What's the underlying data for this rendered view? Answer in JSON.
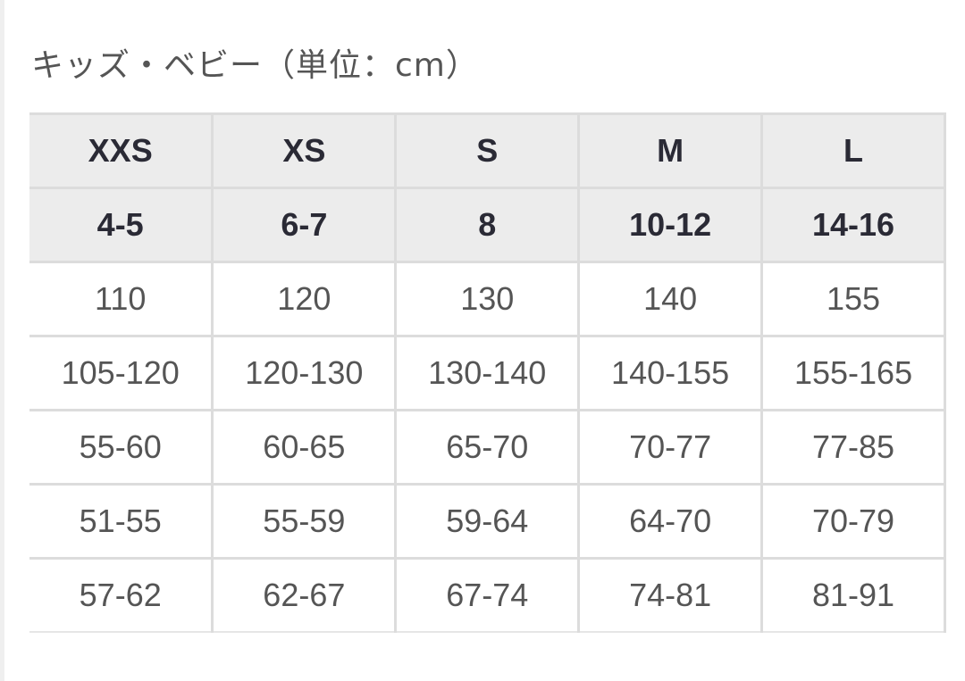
{
  "title": "キッズ・ベビー（単位：cm）",
  "header_rows": [
    [
      "XXS",
      "XS",
      "S",
      "M",
      "L"
    ],
    [
      "4-5",
      "6-7",
      "8",
      "10-12",
      "14-16"
    ]
  ],
  "body_rows": [
    [
      "110",
      "120",
      "130",
      "140",
      "155"
    ],
    [
      "105-120",
      "120-130",
      "130-140",
      "140-155",
      "155-165"
    ],
    [
      "55-60",
      "60-65",
      "65-70",
      "70-77",
      "77-85"
    ],
    [
      "51-55",
      "55-59",
      "59-64",
      "64-70",
      "70-79"
    ],
    [
      "57-62",
      "62-67",
      "67-74",
      "74-81",
      "81-91"
    ]
  ]
}
